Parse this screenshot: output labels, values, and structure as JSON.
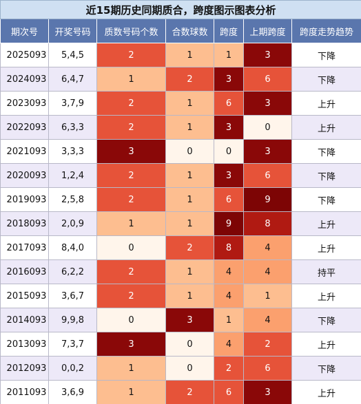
{
  "title": "近15期历史同期质合，跨度图示图表分析",
  "headers": [
    "期次号",
    "开奖号码",
    "质数号码个数",
    "合数球数",
    "跨度",
    "上期跨度",
    "跨度走势趋势"
  ],
  "palette": {
    "row_white": "#ffffff",
    "row_lavender": "#ede9f8",
    "v0": "#fff5eb",
    "v1": "#fdbe90",
    "v2": "#e65339",
    "v3": "#8a0808",
    "v6": "#e65339",
    "v8": "#b01a12",
    "v9": "#7d0505"
  },
  "rows": [
    {
      "period": "2025093",
      "numbers": "5,4,5",
      "prime": "2",
      "composite": "1",
      "span": "1",
      "prev_span": "3",
      "trend": "下降"
    },
    {
      "period": "2024093",
      "numbers": "6,4,7",
      "prime": "1",
      "composite": "2",
      "span": "3",
      "prev_span": "6",
      "trend": "下降"
    },
    {
      "period": "2023093",
      "numbers": "3,7,9",
      "prime": "2",
      "composite": "1",
      "span": "6",
      "prev_span": "3",
      "trend": "上升"
    },
    {
      "period": "2022093",
      "numbers": "6,3,3",
      "prime": "2",
      "composite": "1",
      "span": "3",
      "prev_span": "0",
      "trend": "上升"
    },
    {
      "period": "2021093",
      "numbers": "3,3,3",
      "prime": "3",
      "composite": "0",
      "span": "0",
      "prev_span": "3",
      "trend": "下降"
    },
    {
      "period": "2020093",
      "numbers": "1,2,4",
      "prime": "2",
      "composite": "1",
      "span": "3",
      "prev_span": "6",
      "trend": "下降"
    },
    {
      "period": "2019093",
      "numbers": "2,5,8",
      "prime": "2",
      "composite": "1",
      "span": "6",
      "prev_span": "9",
      "trend": "下降"
    },
    {
      "period": "2018093",
      "numbers": "2,0,9",
      "prime": "1",
      "composite": "1",
      "span": "9",
      "prev_span": "8",
      "trend": "上升"
    },
    {
      "period": "2017093",
      "numbers": "8,4,0",
      "prime": "0",
      "composite": "2",
      "span": "8",
      "prev_span": "4",
      "trend": "上升"
    },
    {
      "period": "2016093",
      "numbers": "6,2,2",
      "prime": "2",
      "composite": "1",
      "span": "4",
      "prev_span": "4",
      "trend": "持平"
    },
    {
      "period": "2015093",
      "numbers": "3,6,7",
      "prime": "2",
      "composite": "1",
      "span": "4",
      "prev_span": "1",
      "trend": "上升"
    },
    {
      "period": "2014093",
      "numbers": "9,9,8",
      "prime": "0",
      "composite": "3",
      "span": "1",
      "prev_span": "4",
      "trend": "下降"
    },
    {
      "period": "2013093",
      "numbers": "7,3,7",
      "prime": "3",
      "composite": "0",
      "span": "4",
      "prev_span": "2",
      "trend": "上升"
    },
    {
      "period": "2012093",
      "numbers": "0,0,2",
      "prime": "1",
      "composite": "0",
      "span": "2",
      "prev_span": "6",
      "trend": "下降"
    },
    {
      "period": "2011093",
      "numbers": "3,6,9",
      "prime": "1",
      "composite": "2",
      "span": "6",
      "prev_span": "3",
      "trend": "上升"
    }
  ]
}
